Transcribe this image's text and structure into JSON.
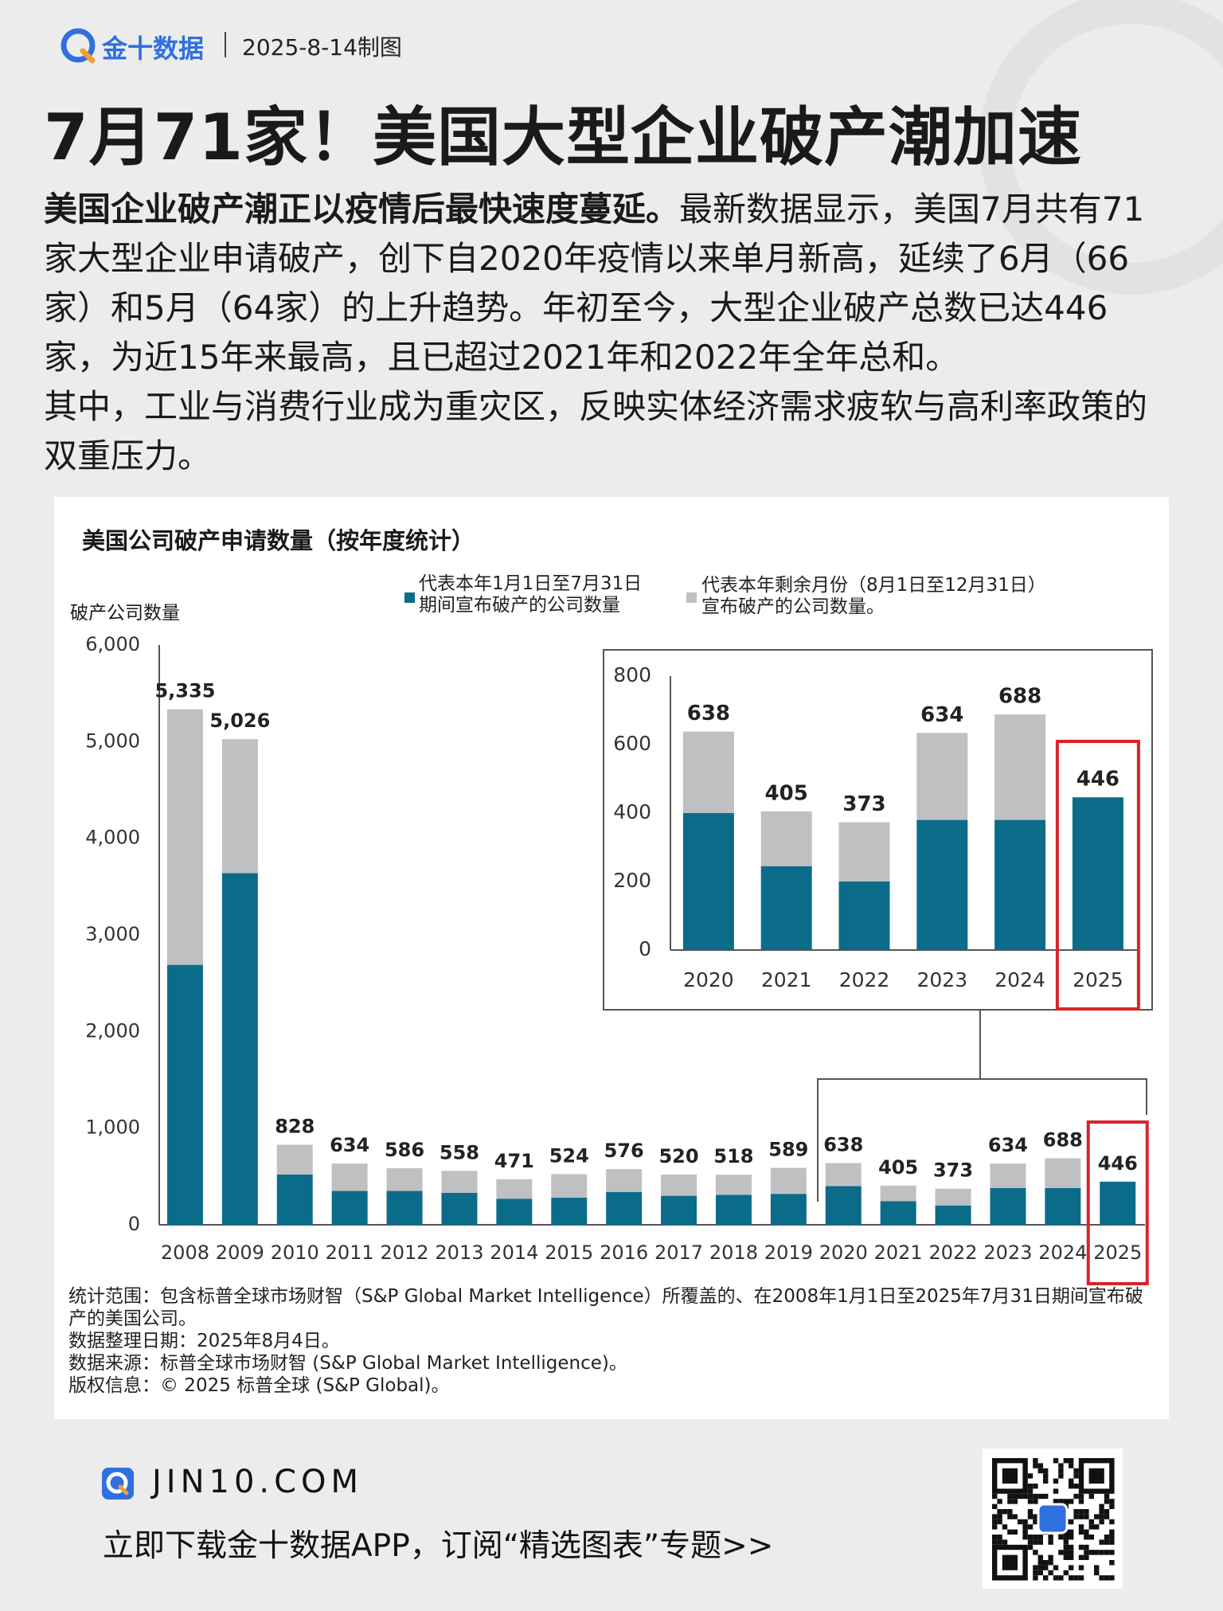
{
  "header": {
    "brand": "金十数据",
    "date": "2025-8-14制图",
    "title": "7月71家！美国大型企业破产潮加速"
  },
  "body": {
    "paragraphs": [
      {
        "bold": "美国企业破产潮正以疫情后最快速度蔓延。",
        "text": "最新数据显示，美国7月共有71家大型企业申请破产，创下自2020年疫情以来单月新高，延续了6月（66家）和5月（64家）的上升趋势。年初至今，大型企业破产总数已达446家，为近15年来最高，且已超过2021年和2022年全年总和。"
      },
      {
        "text": "其中，工业与消费行业成为重灾区，反映实体经济需求疲软与高利率政策的双重压力。"
      }
    ]
  },
  "chart_data": [
    {
      "type": "stacked_bar",
      "title": "美国公司破产申请数量（按年度统计）",
      "y_label": "破产公司数量",
      "categories": [
        "2008",
        "2009",
        "2010",
        "2011",
        "2012",
        "2013",
        "2014",
        "2015",
        "2016",
        "2017",
        "2018",
        "2019",
        "2020",
        "2021",
        "2022",
        "2023",
        "2024",
        "2025"
      ],
      "series": [
        {
          "name": "代表本年1月1日至7月31日期间宣布破产的公司数量",
          "color": "#0b6c89",
          "values": [
            2690,
            3640,
            520,
            350,
            350,
            330,
            270,
            280,
            340,
            300,
            310,
            320,
            400,
            245,
            200,
            380,
            380,
            446
          ]
        },
        {
          "name": "代表本年剩余月份（8月1日至12月31日）宣布破产的公司数量。",
          "color": "#bfc0c2",
          "values": [
            2645,
            1386,
            308,
            284,
            236,
            228,
            201,
            244,
            236,
            220,
            208,
            269,
            238,
            160,
            173,
            254,
            308,
            0
          ]
        }
      ],
      "totals": [
        5335,
        5026,
        828,
        634,
        586,
        558,
        471,
        524,
        576,
        520,
        518,
        589,
        638,
        405,
        373,
        634,
        688,
        446
      ],
      "value_labels": [
        "5,335",
        "5,026",
        "828",
        "634",
        "586",
        "558",
        "471",
        "524",
        "576",
        "520",
        "518",
        "589",
        "638",
        "405",
        "373",
        "634",
        "688",
        "446"
      ],
      "ylim": [
        0,
        6000
      ],
      "yticks": [
        0,
        {
          "value": 1000,
          "label": "1,000"
        },
        {
          "value": 2000,
          "label": "2,000"
        },
        {
          "value": 3000,
          "label": "3,000"
        },
        {
          "value": 4000,
          "label": "4,000"
        },
        {
          "value": 5000,
          "label": "5,000"
        },
        {
          "value": 6000,
          "label": "6,000"
        }
      ],
      "grid": false
    },
    {
      "type": "stacked_bar",
      "categories": [
        "2020",
        "2021",
        "2022",
        "2023",
        "2024",
        "2025"
      ],
      "series": [
        {
          "color": "#0b6c89",
          "values": [
            400,
            245,
            200,
            380,
            380,
            446
          ]
        },
        {
          "color": "#bfc0c2",
          "values": [
            238,
            160,
            173,
            254,
            308,
            0
          ]
        }
      ],
      "totals": [
        638,
        405,
        373,
        634,
        688,
        446
      ],
      "ylim": [
        0,
        800
      ],
      "yticks": [
        0,
        200,
        400,
        600,
        800
      ],
      "grid": false
    }
  ],
  "notes": [
    "统计范围：包含标普全球市场财智（S&P Global Market Intelligence）所覆盖的、在2008年1月1日至2025年7月31日期间宣布破产的美国公司。",
    "数据整理日期：2025年8月4日。",
    "数据来源：标普全球市场财智 (S&P Global Market Intelligence)。",
    "版权信息：© 2025 标普全球 (S&P Global)。"
  ],
  "footer": {
    "site": "JIN10.COM",
    "cta": "立即下载金十数据APP，订阅“精选图表”专题>>"
  }
}
